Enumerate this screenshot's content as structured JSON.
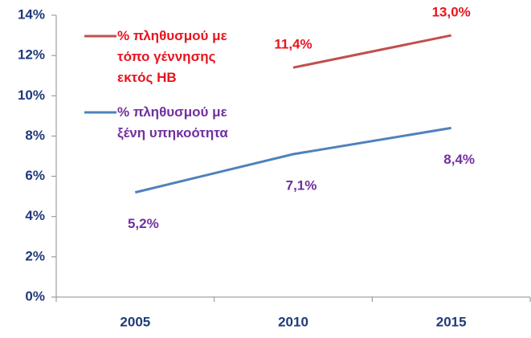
{
  "chart_data": {
    "type": "line",
    "categories": [
      "2005",
      "2010",
      "2015"
    ],
    "series": [
      {
        "name": "% πληθυσμού με τόπο γέννησης εκτός ΗΒ",
        "color": "#c0504d",
        "label_color": "#e8141e",
        "values": [
          null,
          11.4,
          13.0
        ],
        "value_labels": [
          null,
          "11,4%",
          "13,0%"
        ]
      },
      {
        "name": "% πληθυσμού με ξένη υπηκοότητα",
        "color": "#4f81bd",
        "label_color": "#7030a0",
        "values": [
          5.2,
          7.1,
          8.4
        ],
        "value_labels": [
          "5,2%",
          "7,1%",
          "8,4%"
        ]
      }
    ],
    "ylim": [
      0,
      14
    ],
    "yticks": [
      {
        "value": 0,
        "label": "0%"
      },
      {
        "value": 2,
        "label": "2%"
      },
      {
        "value": 4,
        "label": "4%"
      },
      {
        "value": 6,
        "label": "6%"
      },
      {
        "value": 8,
        "label": "8%"
      },
      {
        "value": 10,
        "label": "10%"
      },
      {
        "value": 12,
        "label": "12%"
      },
      {
        "value": 14,
        "label": "14%"
      }
    ],
    "legend": "upper left",
    "grid": false
  }
}
